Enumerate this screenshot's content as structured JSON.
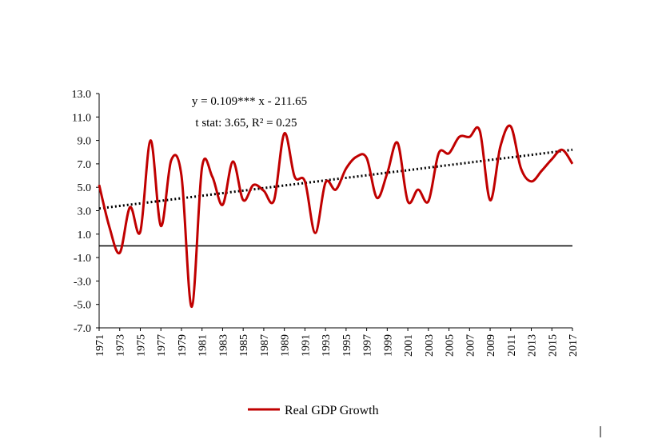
{
  "chart_data": {
    "type": "line",
    "title": "",
    "xlabel": "",
    "ylabel": "",
    "ylim": [
      -7.0,
      13.0
    ],
    "yticks": [
      "-7.0",
      "-5.0",
      "-3.0",
      "-1.0",
      "1.0",
      "3.0",
      "5.0",
      "7.0",
      "9.0",
      "11.0",
      "13.0"
    ],
    "xticks": [
      "1971",
      "1973",
      "1975",
      "1977",
      "1979",
      "1981",
      "1983",
      "1985",
      "1987",
      "1989",
      "1991",
      "1993",
      "1995",
      "1997",
      "1999",
      "2001",
      "2003",
      "2005",
      "2007",
      "2009",
      "2011",
      "2013",
      "2015",
      "2017"
    ],
    "x": [
      1971,
      1972,
      1973,
      1974,
      1975,
      1976,
      1977,
      1978,
      1979,
      1980,
      1981,
      1982,
      1983,
      1984,
      1985,
      1986,
      1987,
      1988,
      1989,
      1990,
      1991,
      1992,
      1993,
      1994,
      1995,
      1996,
      1997,
      1998,
      1999,
      2000,
      2001,
      2002,
      2003,
      2004,
      2005,
      2006,
      2007,
      2008,
      2009,
      2010,
      2011,
      2012,
      2013,
      2014,
      2015,
      2016,
      2017
    ],
    "series": [
      {
        "name": "Real GDP Growth",
        "color": "#c00000",
        "values": [
          5.2,
          1.6,
          -0.6,
          3.3,
          1.2,
          9.0,
          1.7,
          7.3,
          6.0,
          -5.2,
          6.7,
          5.9,
          3.5,
          7.2,
          3.9,
          5.2,
          4.7,
          3.9,
          9.6,
          5.9,
          5.5,
          1.1,
          5.4,
          4.8,
          6.6,
          7.6,
          7.5,
          4.1,
          6.2,
          8.8,
          3.8,
          4.8,
          3.8,
          7.9,
          7.9,
          9.3,
          9.3,
          9.8,
          3.9,
          8.5,
          10.2,
          6.6,
          5.5,
          6.4,
          7.4,
          8.2,
          7.0
        ]
      }
    ],
    "trendline": {
      "style": "dotted",
      "color": "#000000",
      "slope": 0.109,
      "intercept": -211.65
    },
    "annotations": [
      "y = 0.109*** x - 211.65",
      "t stat: 3.65,  R² = 0.25"
    ],
    "legend_position": "bottom",
    "grid": false
  }
}
